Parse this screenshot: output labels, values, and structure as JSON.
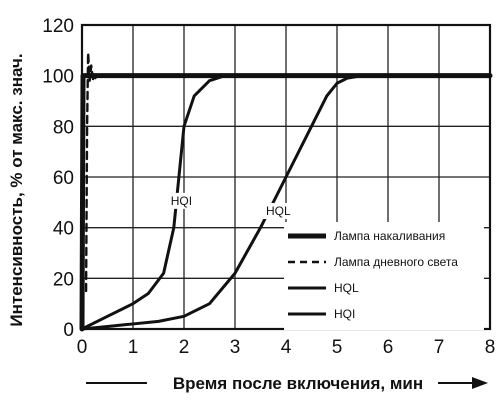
{
  "chart_data": {
    "type": "line",
    "xlabel": "Время после включения, мин",
    "ylabel": "Интенсивность, % от макс. знач.",
    "xlim": [
      0,
      8
    ],
    "ylim": [
      0,
      120
    ],
    "x_ticks": [
      "0",
      "1",
      "2",
      "3",
      "4",
      "5",
      "6",
      "7",
      "8"
    ],
    "y_ticks": [
      "0",
      "20",
      "40",
      "60",
      "80",
      "100",
      "120"
    ],
    "grid": true,
    "legend_position": "bottom-right",
    "series": [
      {
        "name": "Лампа накаливания",
        "style": "solid-thick",
        "color": "#111111",
        "points": [
          [
            0,
            0
          ],
          [
            0.02,
            100
          ],
          [
            8,
            100
          ]
        ]
      },
      {
        "name": "Лампа дневного света",
        "style": "dashed",
        "color": "#111111",
        "points": [
          [
            0.08,
            15
          ],
          [
            0.1,
            80
          ],
          [
            0.12,
            109
          ],
          [
            0.15,
            98
          ],
          [
            0.18,
            104
          ],
          [
            0.22,
            98
          ],
          [
            0.3,
            100
          ],
          [
            8,
            100
          ]
        ]
      },
      {
        "name": "HQL",
        "style": "solid",
        "color": "#111111",
        "points": [
          [
            0,
            0
          ],
          [
            0.5,
            1
          ],
          [
            1,
            2
          ],
          [
            1.5,
            3
          ],
          [
            2,
            5
          ],
          [
            2.5,
            10
          ],
          [
            3,
            22
          ],
          [
            3.5,
            40
          ],
          [
            4,
            60
          ],
          [
            4.5,
            80
          ],
          [
            4.8,
            92
          ],
          [
            5,
            97
          ],
          [
            5.2,
            99
          ],
          [
            5.5,
            100
          ],
          [
            8,
            100
          ]
        ]
      },
      {
        "name": "HQI",
        "style": "solid",
        "color": "#111111",
        "points": [
          [
            0,
            0
          ],
          [
            0.5,
            5
          ],
          [
            1,
            10
          ],
          [
            1.3,
            14
          ],
          [
            1.6,
            22
          ],
          [
            1.8,
            40
          ],
          [
            1.9,
            60
          ],
          [
            2,
            80
          ],
          [
            2.2,
            92
          ],
          [
            2.5,
            98
          ],
          [
            2.8,
            100
          ],
          [
            8,
            100
          ]
        ]
      }
    ],
    "annotations": [
      {
        "text": "HQI",
        "x": 1.95,
        "y": 49
      },
      {
        "text": "HQL",
        "x": 3.85,
        "y": 45
      }
    ]
  }
}
